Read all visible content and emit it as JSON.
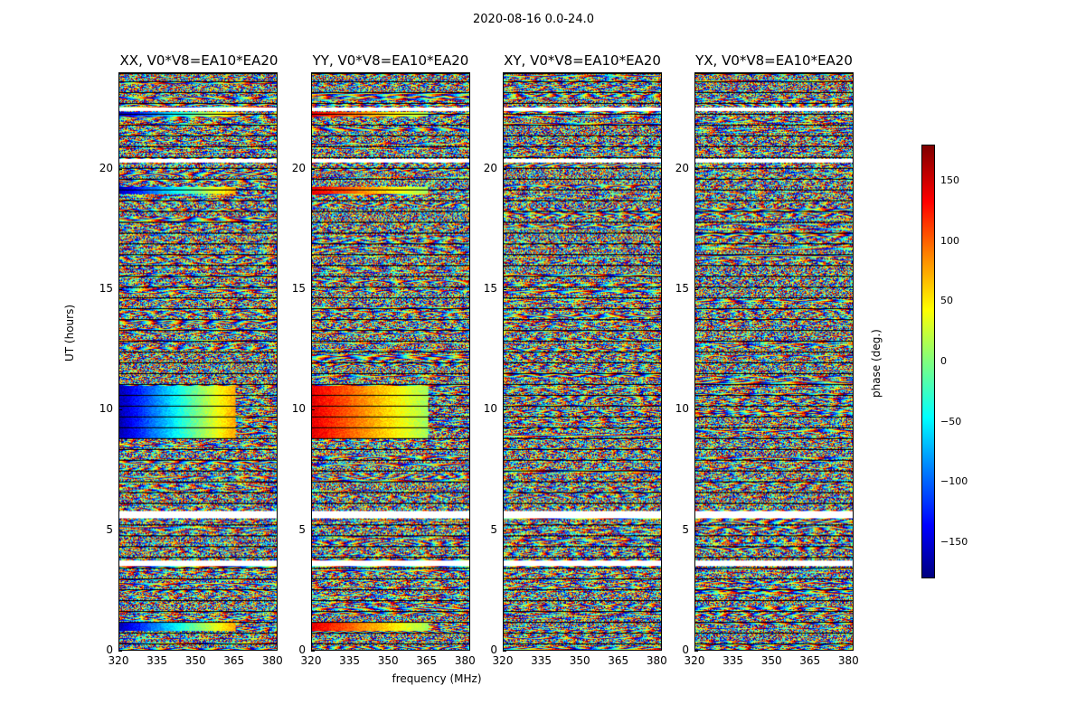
{
  "suptitle": "2020-08-16 0.0-24.0",
  "ylabel": "UT (hours)",
  "xlabel": "frequency (MHz)",
  "colorbar": {
    "label": "phase (deg.)",
    "ticks": [
      "150",
      "100",
      "50",
      "0",
      "−50",
      "−100",
      "−150"
    ],
    "tick_values": [
      150,
      100,
      50,
      0,
      -50,
      -100,
      -150
    ],
    "range": [
      -180,
      180
    ],
    "colormap": "jet"
  },
  "chart_data": [
    {
      "type": "heatmap",
      "title": "XX, V0*V8=EA10*EA20",
      "x_range_mhz": [
        320,
        382
      ],
      "y_range_hours": [
        0,
        24
      ],
      "x_ticks": [
        "320",
        "335",
        "350",
        "365",
        "380"
      ],
      "y_ticks": [
        "0",
        "5",
        "10",
        "15",
        "20"
      ],
      "value": "phase (deg.)"
    },
    {
      "type": "heatmap",
      "title": "YY, V0*V8=EA10*EA20",
      "x_range_mhz": [
        320,
        382
      ],
      "y_range_hours": [
        0,
        24
      ],
      "x_ticks": [
        "320",
        "335",
        "350",
        "365",
        "380"
      ],
      "y_ticks": [
        "0",
        "5",
        "10",
        "15",
        "20"
      ],
      "value": "phase (deg.)"
    },
    {
      "type": "heatmap",
      "title": "XY, V0*V8=EA10*EA20",
      "x_range_mhz": [
        320,
        382
      ],
      "y_range_hours": [
        0,
        24
      ],
      "x_ticks": [
        "320",
        "335",
        "350",
        "365",
        "380"
      ],
      "y_ticks": [
        "0",
        "5",
        "10",
        "15",
        "20"
      ],
      "value": "phase (deg.)"
    },
    {
      "type": "heatmap",
      "title": "YX, V0*V8=EA10*EA20",
      "x_range_mhz": [
        320,
        382
      ],
      "y_range_hours": [
        0,
        24
      ],
      "x_ticks": [
        "320",
        "335",
        "350",
        "365",
        "380"
      ],
      "y_ticks": [
        "0",
        "5",
        "10",
        "15",
        "20"
      ],
      "value": "phase (deg.)"
    }
  ]
}
